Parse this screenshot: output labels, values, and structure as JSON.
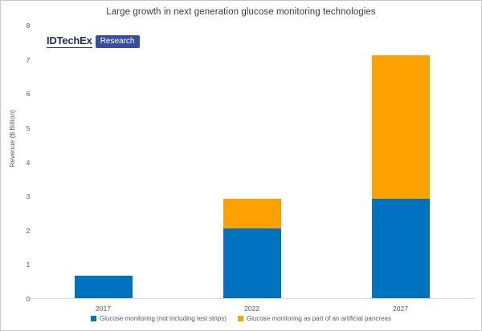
{
  "logo": {
    "brand": "IDTechEx",
    "badge": "Research",
    "brand_color": "#232C60",
    "badge_bg": "#3A4CA0",
    "badge_text_color": "#FFFFFF"
  },
  "chart_data": {
    "type": "bar",
    "stacked": true,
    "title": "Large growth in next generation glucose monitoring technologies",
    "categories": [
      "2017",
      "2022",
      "2027"
    ],
    "series": [
      {
        "name": "Glucose monitoring (not including test strips)",
        "color": "#0072C0",
        "values": [
          0.65,
          2.05,
          2.9
        ]
      },
      {
        "name": "Glucose monitoring as part of an artificial pancreas",
        "color": "#FFA200",
        "values": [
          0,
          0.85,
          4.2
        ]
      }
    ],
    "xlabel": "",
    "ylabel": "Revenue ($ Billion)",
    "ylim": [
      0,
      8
    ],
    "yticks": [
      0,
      1,
      2,
      3,
      4,
      5,
      6,
      7,
      8
    ],
    "grid": false,
    "legend_position": "bottom"
  },
  "colors": {
    "axis_line": "#D9D9D9",
    "tick_text": "#595959",
    "title_text": "#3A3A3A"
  }
}
